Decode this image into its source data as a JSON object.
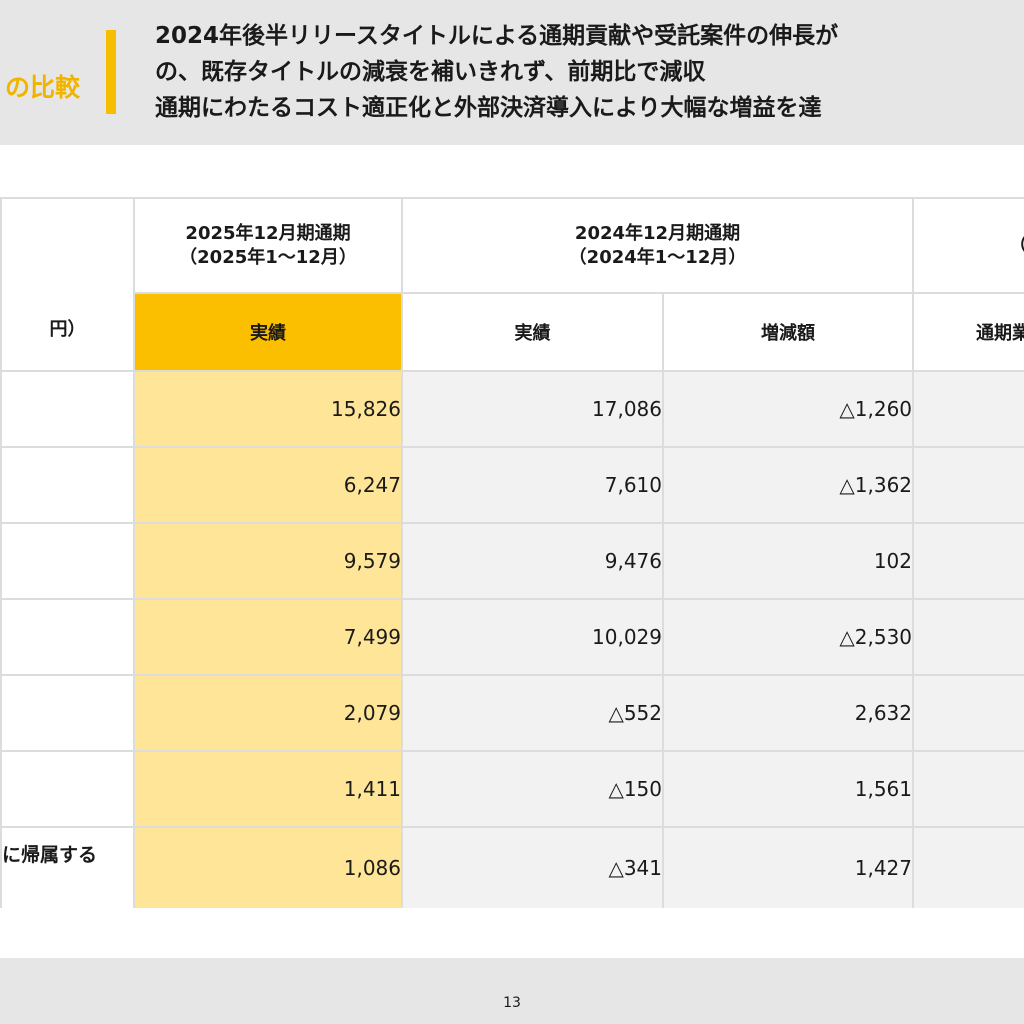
{
  "header": {
    "left_title": "の比較",
    "lines": [
      "2024年後半リリースタイトルによる通期貢献や受託案件の伸長が",
      "の、既存タイトルの減衰を補いきれず、前期比で減収",
      "通期にわたるコスト適正化と外部決済導入により大幅な増益を達"
    ]
  },
  "table": {
    "unit": "円）",
    "col_2025": {
      "title": "2025年12月期通期",
      "period": "（2025年1～12月）",
      "sub": "実績"
    },
    "col_2024": {
      "title": "2024年12月期通期",
      "period": "（2024年1～12月）",
      "sub_actual": "実績",
      "sub_diff": "増減額"
    },
    "col_ref": {
      "title": "（参",
      "sub": "通期業"
    },
    "rows": [
      {
        "label": "",
        "v2025": "15,826",
        "v2024": "17,086",
        "diff": "△1,260"
      },
      {
        "label": "",
        "v2025": "6,247",
        "v2024": "7,610",
        "diff": "△1,362"
      },
      {
        "label": "",
        "v2025": "9,579",
        "v2024": "9,476",
        "diff": "102"
      },
      {
        "label": "",
        "v2025": "7,499",
        "v2024": "10,029",
        "diff": "△2,530"
      },
      {
        "label": "",
        "v2025": "2,079",
        "v2024": "△552",
        "diff": "2,632"
      },
      {
        "label": "",
        "v2025": "1,411",
        "v2024": "△150",
        "diff": "1,561"
      },
      {
        "label": "に帰属する",
        "v2025": "1,086",
        "v2024": "△341",
        "diff": "1,427"
      }
    ]
  },
  "footer": {
    "page_number": "13"
  },
  "colors": {
    "accent": "#fcbf00",
    "highlight": "#ffe597",
    "header_bg": "#e6e6e6"
  }
}
